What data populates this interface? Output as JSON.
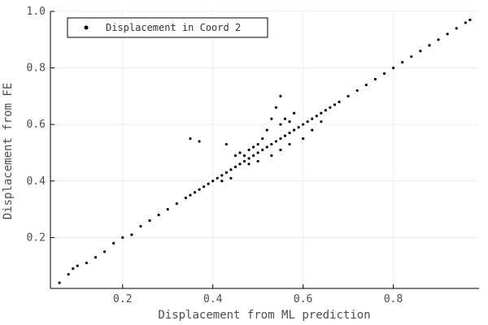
{
  "chart_data": {
    "type": "scatter",
    "title": "",
    "xlabel": "Displacement from ML prediction",
    "ylabel": "Displacement from FE",
    "xlim": [
      0.04,
      0.99
    ],
    "ylim": [
      0.02,
      1.0
    ],
    "xticks": [
      {
        "value": 0.2,
        "label": "0.2"
      },
      {
        "value": 0.4,
        "label": "0.4"
      },
      {
        "value": 0.6,
        "label": "0.6"
      },
      {
        "value": 0.8,
        "label": "0.8"
      }
    ],
    "yticks": [
      {
        "value": 0.2,
        "label": "0.2"
      },
      {
        "value": 0.4,
        "label": "0.4"
      },
      {
        "value": 0.6,
        "label": "0.6"
      },
      {
        "value": 0.8,
        "label": "0.8"
      },
      {
        "value": 1.0,
        "label": "1.0"
      }
    ],
    "grid": true,
    "legend_position": "top-left",
    "series": [
      {
        "name": "Displacement in Coord 2",
        "color": "#000000",
        "points": [
          [
            0.06,
            0.04
          ],
          [
            0.08,
            0.07
          ],
          [
            0.09,
            0.09
          ],
          [
            0.1,
            0.1
          ],
          [
            0.12,
            0.11
          ],
          [
            0.14,
            0.13
          ],
          [
            0.16,
            0.15
          ],
          [
            0.18,
            0.18
          ],
          [
            0.2,
            0.2
          ],
          [
            0.22,
            0.21
          ],
          [
            0.24,
            0.24
          ],
          [
            0.26,
            0.26
          ],
          [
            0.28,
            0.28
          ],
          [
            0.3,
            0.3
          ],
          [
            0.32,
            0.32
          ],
          [
            0.34,
            0.34
          ],
          [
            0.35,
            0.35
          ],
          [
            0.36,
            0.36
          ],
          [
            0.37,
            0.37
          ],
          [
            0.38,
            0.38
          ],
          [
            0.39,
            0.39
          ],
          [
            0.4,
            0.4
          ],
          [
            0.41,
            0.41
          ],
          [
            0.42,
            0.42
          ],
          [
            0.43,
            0.43
          ],
          [
            0.44,
            0.44
          ],
          [
            0.45,
            0.45
          ],
          [
            0.46,
            0.46
          ],
          [
            0.47,
            0.47
          ],
          [
            0.48,
            0.48
          ],
          [
            0.49,
            0.49
          ],
          [
            0.5,
            0.5
          ],
          [
            0.51,
            0.51
          ],
          [
            0.52,
            0.52
          ],
          [
            0.53,
            0.53
          ],
          [
            0.54,
            0.54
          ],
          [
            0.55,
            0.55
          ],
          [
            0.56,
            0.56
          ],
          [
            0.57,
            0.57
          ],
          [
            0.58,
            0.58
          ],
          [
            0.59,
            0.59
          ],
          [
            0.6,
            0.6
          ],
          [
            0.61,
            0.61
          ],
          [
            0.62,
            0.62
          ],
          [
            0.63,
            0.63
          ],
          [
            0.64,
            0.64
          ],
          [
            0.65,
            0.65
          ],
          [
            0.66,
            0.66
          ],
          [
            0.67,
            0.67
          ],
          [
            0.68,
            0.68
          ],
          [
            0.7,
            0.7
          ],
          [
            0.72,
            0.72
          ],
          [
            0.74,
            0.74
          ],
          [
            0.76,
            0.76
          ],
          [
            0.78,
            0.78
          ],
          [
            0.8,
            0.8
          ],
          [
            0.82,
            0.82
          ],
          [
            0.84,
            0.84
          ],
          [
            0.86,
            0.86
          ],
          [
            0.88,
            0.88
          ],
          [
            0.9,
            0.9
          ],
          [
            0.92,
            0.92
          ],
          [
            0.94,
            0.94
          ],
          [
            0.96,
            0.96
          ],
          [
            0.97,
            0.97
          ],
          [
            0.35,
            0.55
          ],
          [
            0.37,
            0.54
          ],
          [
            0.43,
            0.53
          ],
          [
            0.45,
            0.49
          ],
          [
            0.46,
            0.5
          ],
          [
            0.47,
            0.49
          ],
          [
            0.48,
            0.51
          ],
          [
            0.49,
            0.52
          ],
          [
            0.5,
            0.53
          ],
          [
            0.51,
            0.55
          ],
          [
            0.52,
            0.58
          ],
          [
            0.53,
            0.62
          ],
          [
            0.54,
            0.66
          ],
          [
            0.55,
            0.7
          ],
          [
            0.56,
            0.62
          ],
          [
            0.55,
            0.6
          ],
          [
            0.57,
            0.61
          ],
          [
            0.58,
            0.64
          ],
          [
            0.53,
            0.49
          ],
          [
            0.55,
            0.51
          ],
          [
            0.57,
            0.53
          ],
          [
            0.6,
            0.55
          ],
          [
            0.62,
            0.58
          ],
          [
            0.64,
            0.61
          ],
          [
            0.48,
            0.46
          ],
          [
            0.5,
            0.47
          ],
          [
            0.44,
            0.41
          ],
          [
            0.42,
            0.4
          ]
        ]
      }
    ]
  }
}
